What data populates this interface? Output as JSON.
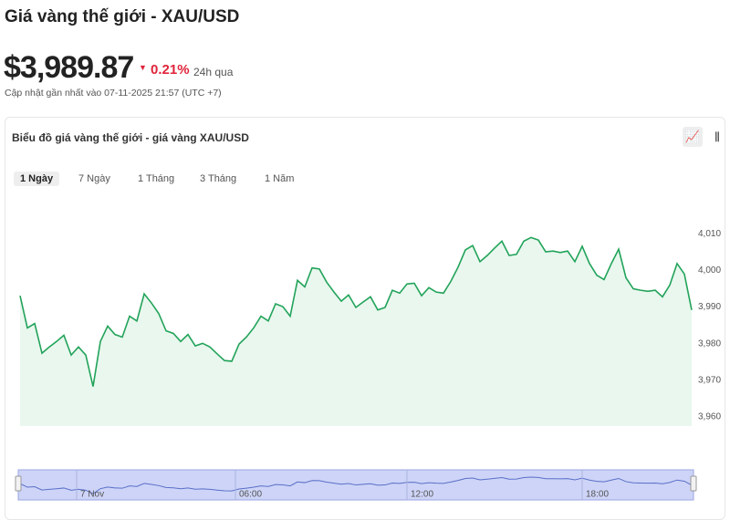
{
  "header": {
    "title": "Giá vàng thế giới - XAU/USD",
    "price": "$3,989.87",
    "change": "0.21%",
    "period": "24h qua",
    "updated": "Cập nhật gần nhất vào 07-11-2025 21:57 (UTC +7)"
  },
  "card": {
    "title": "Biểu đồ giá vàng thế giới - giá vàng XAU/USD",
    "tabs": [
      "1 Ngày",
      "7 Ngày",
      "1 Tháng",
      "3 Tháng",
      "1 Năm"
    ]
  },
  "navigator": {
    "labels": [
      "7 Nov",
      "06:00",
      "12:00",
      "18:00"
    ]
  },
  "chart_data": {
    "type": "line",
    "color": "#22a35a",
    "fill": "#e9f7ee",
    "ylim": [
      3957.5,
      4020.3
    ],
    "yticks": [
      {
        "value": 3960,
        "label": "3,960"
      },
      {
        "value": 3970,
        "label": "3,970"
      },
      {
        "value": 3980,
        "label": "3,980"
      },
      {
        "value": 3990,
        "label": "3,990"
      },
      {
        "value": 4000,
        "label": "4,000"
      },
      {
        "value": 4010,
        "label": "4,010"
      }
    ],
    "values": [
      3993.1,
      3984.3,
      3985.5,
      3977.4,
      3979.1,
      3980.6,
      3982.3,
      3976.9,
      3979.1,
      3976.9,
      3968.3,
      3980.6,
      3984.8,
      3982.5,
      3981.8,
      3987.5,
      3986.2,
      3993.6,
      3991.1,
      3988.2,
      3983.5,
      3982.8,
      3980.6,
      3982.5,
      3979.4,
      3980.1,
      3979.1,
      3977.2,
      3975.4,
      3975.2,
      3979.9,
      3981.8,
      3984.3,
      3987.5,
      3986.2,
      3990.9,
      3990.1,
      3987.5,
      3997.3,
      3995.5,
      4000.7,
      4000.4,
      3996.8,
      3994.1,
      3991.6,
      3993.3,
      3989.9,
      3991.4,
      3992.8,
      3989.2,
      3989.9,
      3994.6,
      3993.8,
      3996.3,
      3996.5,
      3993.1,
      3995.3,
      3994.1,
      3993.8,
      3997.0,
      4000.9,
      4005.6,
      4006.8,
      4002.4,
      4004.1,
      4006.1,
      4008.0,
      4004.1,
      4004.4,
      4008.0,
      4009.0,
      4008.3,
      4005.1,
      4005.3,
      4004.9,
      4005.3,
      4002.4,
      4006.6,
      4001.9,
      3998.7,
      3997.5,
      4001.9,
      4005.8,
      3998.0,
      3995.0,
      3994.6,
      3994.3,
      3994.6,
      3992.8,
      3996.0,
      4001.9,
      3999.0,
      3989.2
    ]
  }
}
